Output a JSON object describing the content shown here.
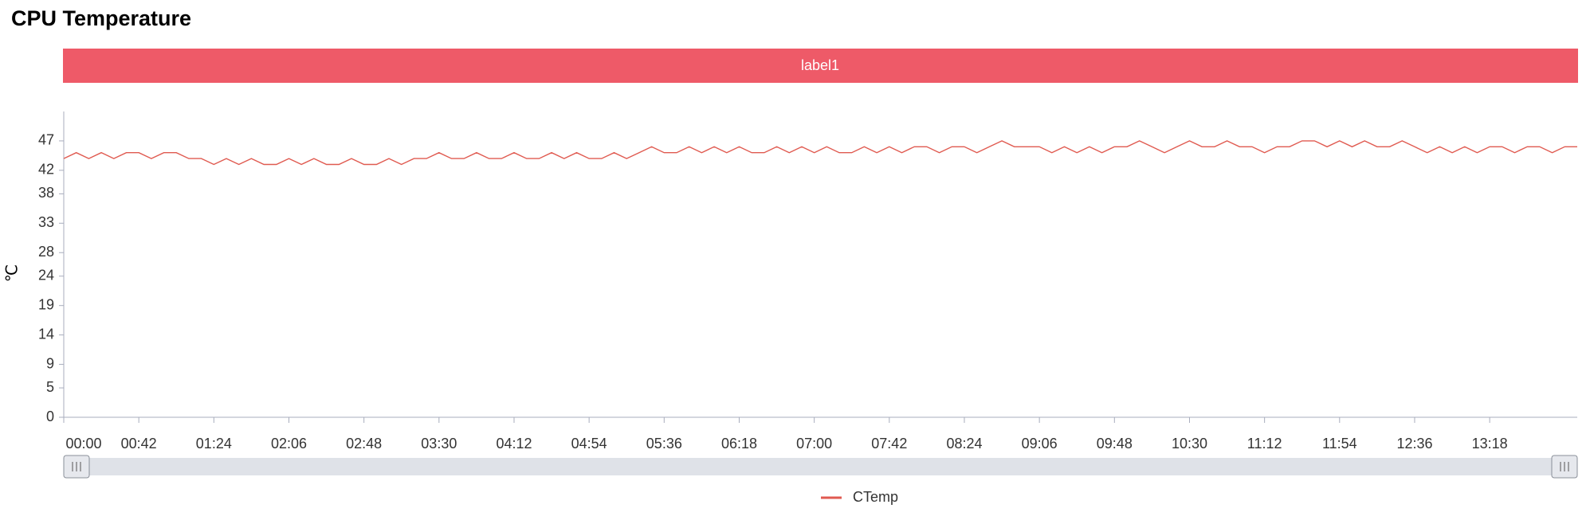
{
  "chart_data": {
    "type": "line",
    "title": "CPU Temperature",
    "banner": "label1",
    "y_label": "℃",
    "x": [
      0,
      7,
      14,
      21,
      28,
      35,
      42,
      49,
      56,
      63,
      70,
      77,
      84,
      91,
      98,
      105,
      112,
      119,
      126,
      133,
      140,
      147,
      154,
      161,
      168,
      175,
      182,
      189,
      196,
      203,
      210,
      217,
      224,
      231,
      238,
      245,
      252,
      259,
      266,
      273,
      280,
      287,
      294,
      301,
      308,
      315,
      322,
      329,
      336,
      343,
      350,
      357,
      364,
      371,
      378,
      385,
      392,
      399,
      406,
      413,
      420,
      427,
      434,
      441,
      448,
      455,
      462,
      469,
      476,
      483,
      490,
      497,
      504,
      511,
      518,
      525,
      532,
      539,
      546,
      553,
      560,
      567,
      574,
      581,
      588,
      595,
      602,
      609,
      616,
      623,
      630,
      637,
      644,
      651,
      658,
      665,
      672,
      679,
      686,
      693,
      700,
      707,
      714,
      721,
      728,
      735,
      742,
      749,
      756,
      763,
      770,
      777,
      784,
      791,
      798,
      805,
      812,
      819,
      826,
      833,
      840,
      847
    ],
    "series": [
      {
        "name": "CTemp",
        "color": "#e05a50",
        "values": [
          44,
          45,
          44,
          45,
          44,
          45,
          45,
          44,
          45,
          45,
          44,
          44,
          43,
          44,
          43,
          44,
          43,
          43,
          44,
          43,
          44,
          43,
          43,
          44,
          43,
          43,
          44,
          43,
          44,
          44,
          45,
          44,
          44,
          45,
          44,
          44,
          45,
          44,
          44,
          45,
          44,
          45,
          44,
          44,
          45,
          44,
          45,
          46,
          45,
          45,
          46,
          45,
          46,
          45,
          46,
          45,
          45,
          46,
          45,
          46,
          45,
          46,
          45,
          45,
          46,
          45,
          46,
          45,
          46,
          46,
          45,
          46,
          46,
          45,
          46,
          47,
          46,
          46,
          46,
          45,
          46,
          45,
          46,
          45,
          46,
          46,
          47,
          46,
          45,
          46,
          47,
          46,
          46,
          47,
          46,
          46,
          45,
          46,
          46,
          47,
          47,
          46,
          47,
          46,
          47,
          46,
          46,
          47,
          46,
          45,
          46,
          45,
          46,
          45,
          46,
          46,
          45,
          46,
          46,
          45,
          46,
          46
        ]
      }
    ],
    "xlim": [
      0,
      847
    ],
    "xticks": [
      {
        "value": 0,
        "label": "00:00"
      },
      {
        "value": 42,
        "label": "00:42"
      },
      {
        "value": 84,
        "label": "01:24"
      },
      {
        "value": 126,
        "label": "02:06"
      },
      {
        "value": 168,
        "label": "02:48"
      },
      {
        "value": 210,
        "label": "03:30"
      },
      {
        "value": 252,
        "label": "04:12"
      },
      {
        "value": 294,
        "label": "04:54"
      },
      {
        "value": 336,
        "label": "05:36"
      },
      {
        "value": 378,
        "label": "06:18"
      },
      {
        "value": 420,
        "label": "07:00"
      },
      {
        "value": 462,
        "label": "07:42"
      },
      {
        "value": 504,
        "label": "08:24"
      },
      {
        "value": 546,
        "label": "09:06"
      },
      {
        "value": 588,
        "label": "09:48"
      },
      {
        "value": 630,
        "label": "10:30"
      },
      {
        "value": 672,
        "label": "11:12"
      },
      {
        "value": 714,
        "label": "11:54"
      },
      {
        "value": 756,
        "label": "12:36"
      },
      {
        "value": 798,
        "label": "13:18"
      }
    ],
    "ylim": [
      0,
      52
    ],
    "yticks": [
      0,
      5,
      9,
      14,
      19,
      24,
      28,
      33,
      38,
      42,
      47
    ]
  }
}
